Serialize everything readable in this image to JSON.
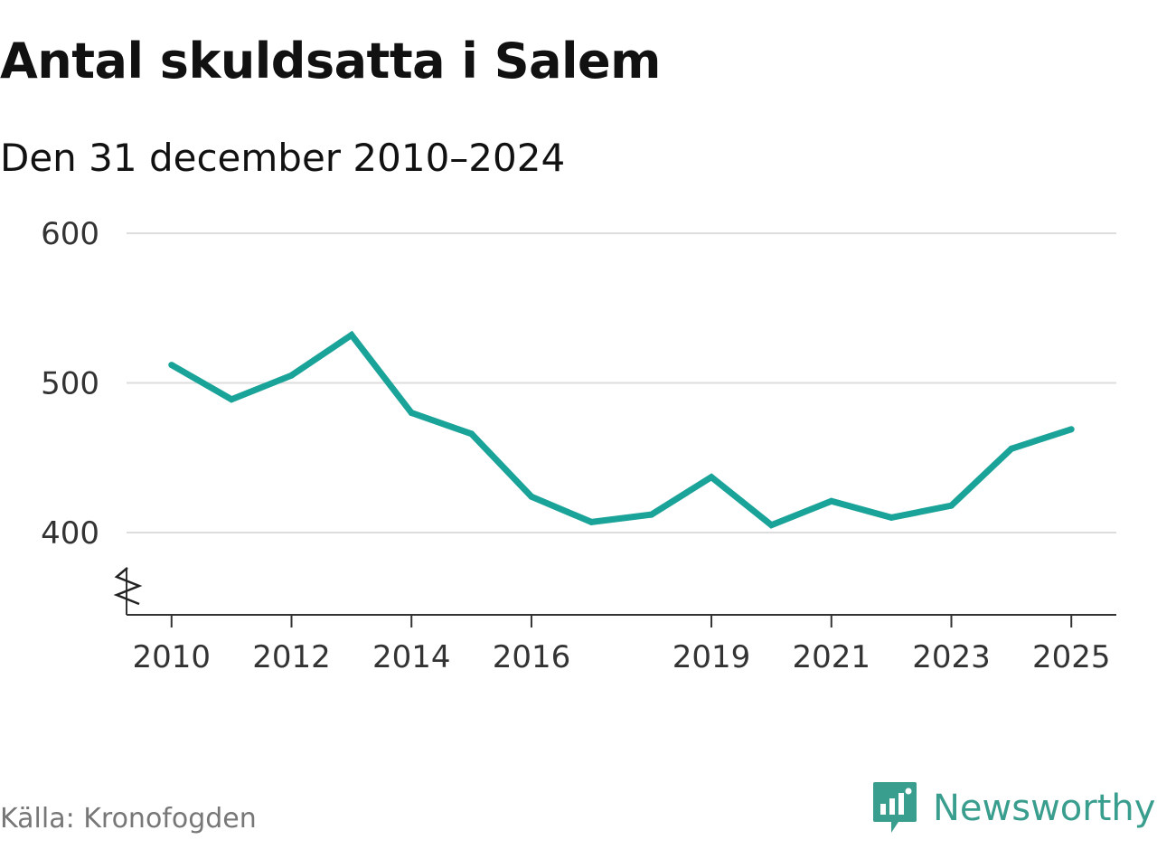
{
  "chart_data": {
    "type": "line",
    "title": "Antal skuldsatta i Salem",
    "subtitle": "Den 31 december 2010–2024",
    "x": [
      2010,
      2011,
      2012,
      2013,
      2014,
      2015,
      2016,
      2017,
      2018,
      2019,
      2020,
      2021,
      2022,
      2023,
      2024,
      2025
    ],
    "values": [
      512,
      489,
      505,
      532,
      480,
      466,
      424,
      407,
      412,
      437,
      405,
      421,
      410,
      418,
      456,
      469
    ],
    "xticks": [
      2010,
      2012,
      2014,
      2016,
      2019,
      2021,
      2023,
      2025
    ],
    "yticks": [
      400,
      500,
      600
    ],
    "xlim": [
      2009.25,
      2025.75
    ],
    "ylim": [
      345,
      600
    ],
    "y_axis_break": true,
    "grid": true,
    "line_color": "#1aa398"
  },
  "footer": {
    "source": "Källa: Kronofogden",
    "brand": "Newsworthy",
    "brand_icon": "newsworthy-logo-icon",
    "brand_color": "#3a9e8e"
  }
}
